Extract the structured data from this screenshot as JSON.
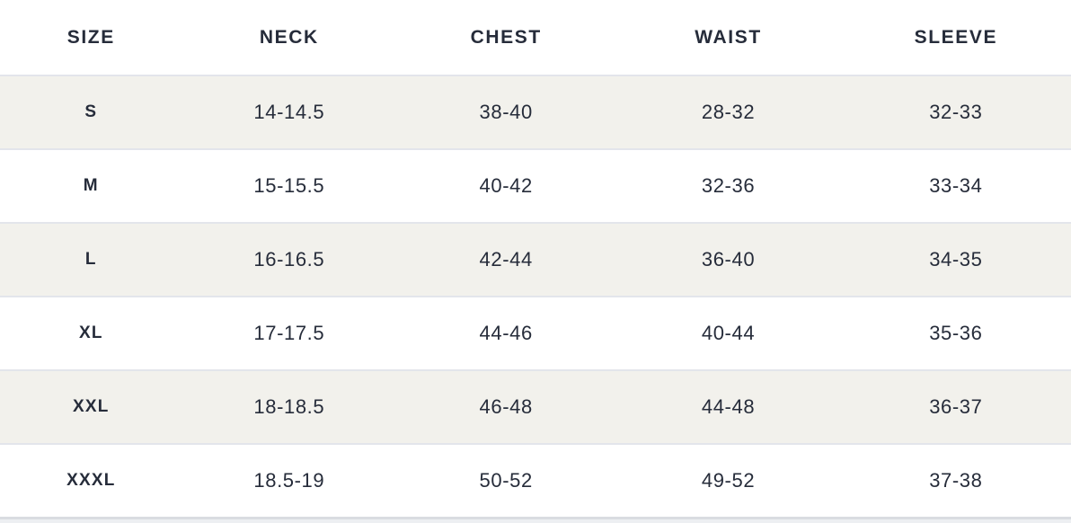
{
  "table": {
    "columns": [
      "SIZE",
      "NECK",
      "CHEST",
      "WAIST",
      "SLEEVE"
    ],
    "rows": [
      [
        "S",
        "14-14.5",
        "38-40",
        "28-32",
        "32-33"
      ],
      [
        "M",
        "15-15.5",
        "40-42",
        "32-36",
        "33-34"
      ],
      [
        "L",
        "16-16.5",
        "42-44",
        "36-40",
        "34-35"
      ],
      [
        "XL",
        "17-17.5",
        "44-46",
        "40-44",
        "35-36"
      ],
      [
        "XXL",
        "18-18.5",
        "46-48",
        "44-48",
        "36-37"
      ],
      [
        "XXXL",
        "18.5-19",
        "50-52",
        "49-52",
        "37-38"
      ]
    ]
  },
  "colors": {
    "text": "#262c3a",
    "stripe_row_background": "#f2f1ec",
    "plain_row_background": "#ffffff",
    "row_border": "#e3e5eb",
    "bottom_divider": "#d9dce1"
  }
}
